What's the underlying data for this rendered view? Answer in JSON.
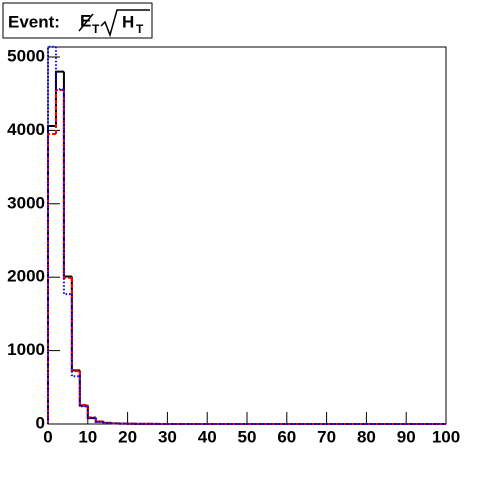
{
  "chart_data": {
    "type": "histogram",
    "title": "Event:",
    "title_num": "E",
    "title_num_sub": "T",
    "title_den": "H",
    "title_den_sub": "T",
    "bins": [
      0,
      2,
      4,
      6,
      8,
      10,
      12,
      14,
      16,
      18,
      20,
      22,
      24,
      26,
      28,
      30,
      32,
      34,
      36,
      38,
      40,
      42,
      44,
      46,
      48,
      50,
      52,
      54,
      56,
      58,
      60,
      62,
      64,
      66,
      68,
      70,
      72,
      74,
      76,
      78,
      80,
      82,
      84,
      86,
      88,
      90,
      92,
      94,
      96,
      98,
      100
    ],
    "series": [
      {
        "color": "#000000",
        "style": "solid",
        "values": [
          4060,
          4800,
          2010,
          730,
          250,
          80,
          30,
          15,
          8,
          5,
          3,
          2,
          1,
          1,
          0,
          0,
          0,
          0,
          0,
          0,
          0,
          0,
          0,
          0,
          0,
          0,
          0,
          0,
          0,
          0,
          0,
          0,
          0,
          0,
          0,
          0,
          0,
          0,
          0,
          0,
          0,
          0,
          0,
          0,
          0,
          0,
          0,
          0,
          0,
          0
        ]
      },
      {
        "color": "#ff0000",
        "style": "dashed",
        "values": [
          3950,
          4550,
          1990,
          720,
          260,
          90,
          35,
          15,
          8,
          5,
          3,
          2,
          1,
          1,
          0,
          0,
          0,
          0,
          0,
          0,
          0,
          0,
          0,
          0,
          0,
          0,
          0,
          0,
          0,
          0,
          0,
          0,
          0,
          0,
          0,
          0,
          0,
          0,
          0,
          0,
          0,
          0,
          0,
          0,
          0,
          0,
          0,
          0,
          0,
          0
        ]
      },
      {
        "color": "#0000ff",
        "style": "dotted",
        "values": [
          5140,
          4560,
          1770,
          650,
          240,
          85,
          30,
          14,
          7,
          5,
          3,
          2,
          1,
          1,
          0,
          0,
          0,
          0,
          0,
          0,
          0,
          0,
          0,
          0,
          0,
          0,
          0,
          0,
          0,
          0,
          0,
          0,
          0,
          0,
          0,
          0,
          0,
          0,
          0,
          0,
          0,
          0,
          0,
          0,
          0,
          0,
          0,
          0,
          0,
          0
        ]
      }
    ],
    "xlim": [
      0,
      100
    ],
    "xticks": [
      0,
      10,
      20,
      30,
      40,
      50,
      60,
      70,
      80,
      90,
      100
    ],
    "ylim": [
      0,
      5136
    ],
    "yticks": [
      0,
      1000,
      2000,
      3000,
      4000,
      5000
    ]
  }
}
